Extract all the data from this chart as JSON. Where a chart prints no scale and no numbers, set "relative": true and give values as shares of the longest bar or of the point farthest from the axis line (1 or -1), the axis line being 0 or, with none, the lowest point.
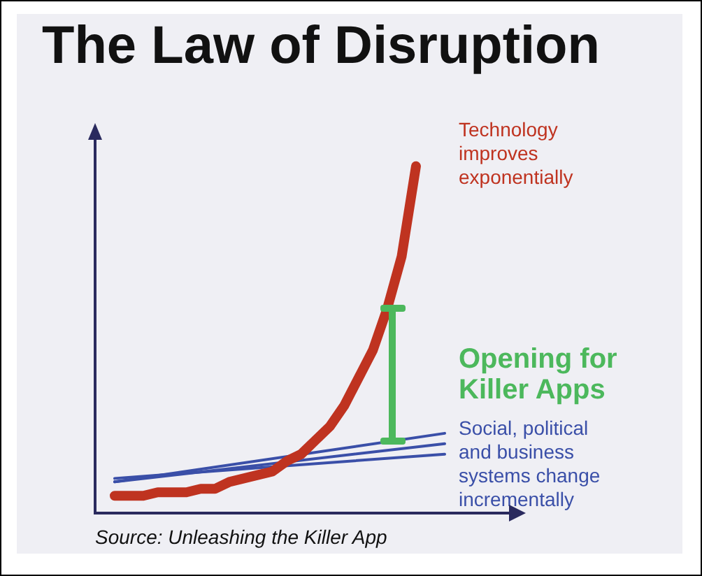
{
  "chart_data": {
    "type": "line",
    "title": "The Law of Disruption",
    "relative": true,
    "marker": "none",
    "categories": [
      null,
      null,
      null,
      null,
      null,
      null,
      null,
      null,
      null,
      null,
      null,
      null,
      null,
      null,
      null,
      null,
      null,
      null,
      null,
      null,
      null,
      null,
      null,
      null
    ],
    "series": [
      {
        "name": "Technology improves exponentially",
        "color": "#bf3320",
        "values": [
          0.05,
          0.05,
          0.05,
          0.06,
          0.06,
          0.06,
          0.07,
          0.07,
          0.09,
          0.1,
          0.11,
          0.12,
          0.15,
          0.17,
          0.21,
          0.25,
          0.31,
          0.39,
          0.47,
          0.59,
          0.74,
          1,
          null,
          null
        ]
      },
      {
        "name": "Social, political and business systems change incrementally",
        "color": "#3a4fa8",
        "values": [
          0.09,
          null,
          null,
          null,
          null,
          null,
          null,
          null,
          null,
          null,
          null,
          null,
          null,
          null,
          null,
          null,
          null,
          null,
          null,
          null,
          null,
          null,
          null,
          0.23
        ]
      },
      {
        "color": "#3a4fa8",
        "values": [
          0.09,
          null,
          null,
          null,
          null,
          null,
          null,
          null,
          null,
          null,
          null,
          null,
          null,
          null,
          null,
          null,
          null,
          null,
          null,
          null,
          null,
          null,
          null,
          0.2
        ]
      },
      {
        "color": "#3a4fa8",
        "values": [
          0.1,
          null,
          null,
          null,
          null,
          null,
          null,
          null,
          null,
          null,
          null,
          null,
          null,
          null,
          null,
          null,
          null,
          null,
          null,
          null,
          null,
          null,
          null,
          0.17
        ]
      }
    ],
    "annotations": [
      "Opening for Killer Apps",
      "Source: Unleashing the Killer App"
    ]
  }
}
